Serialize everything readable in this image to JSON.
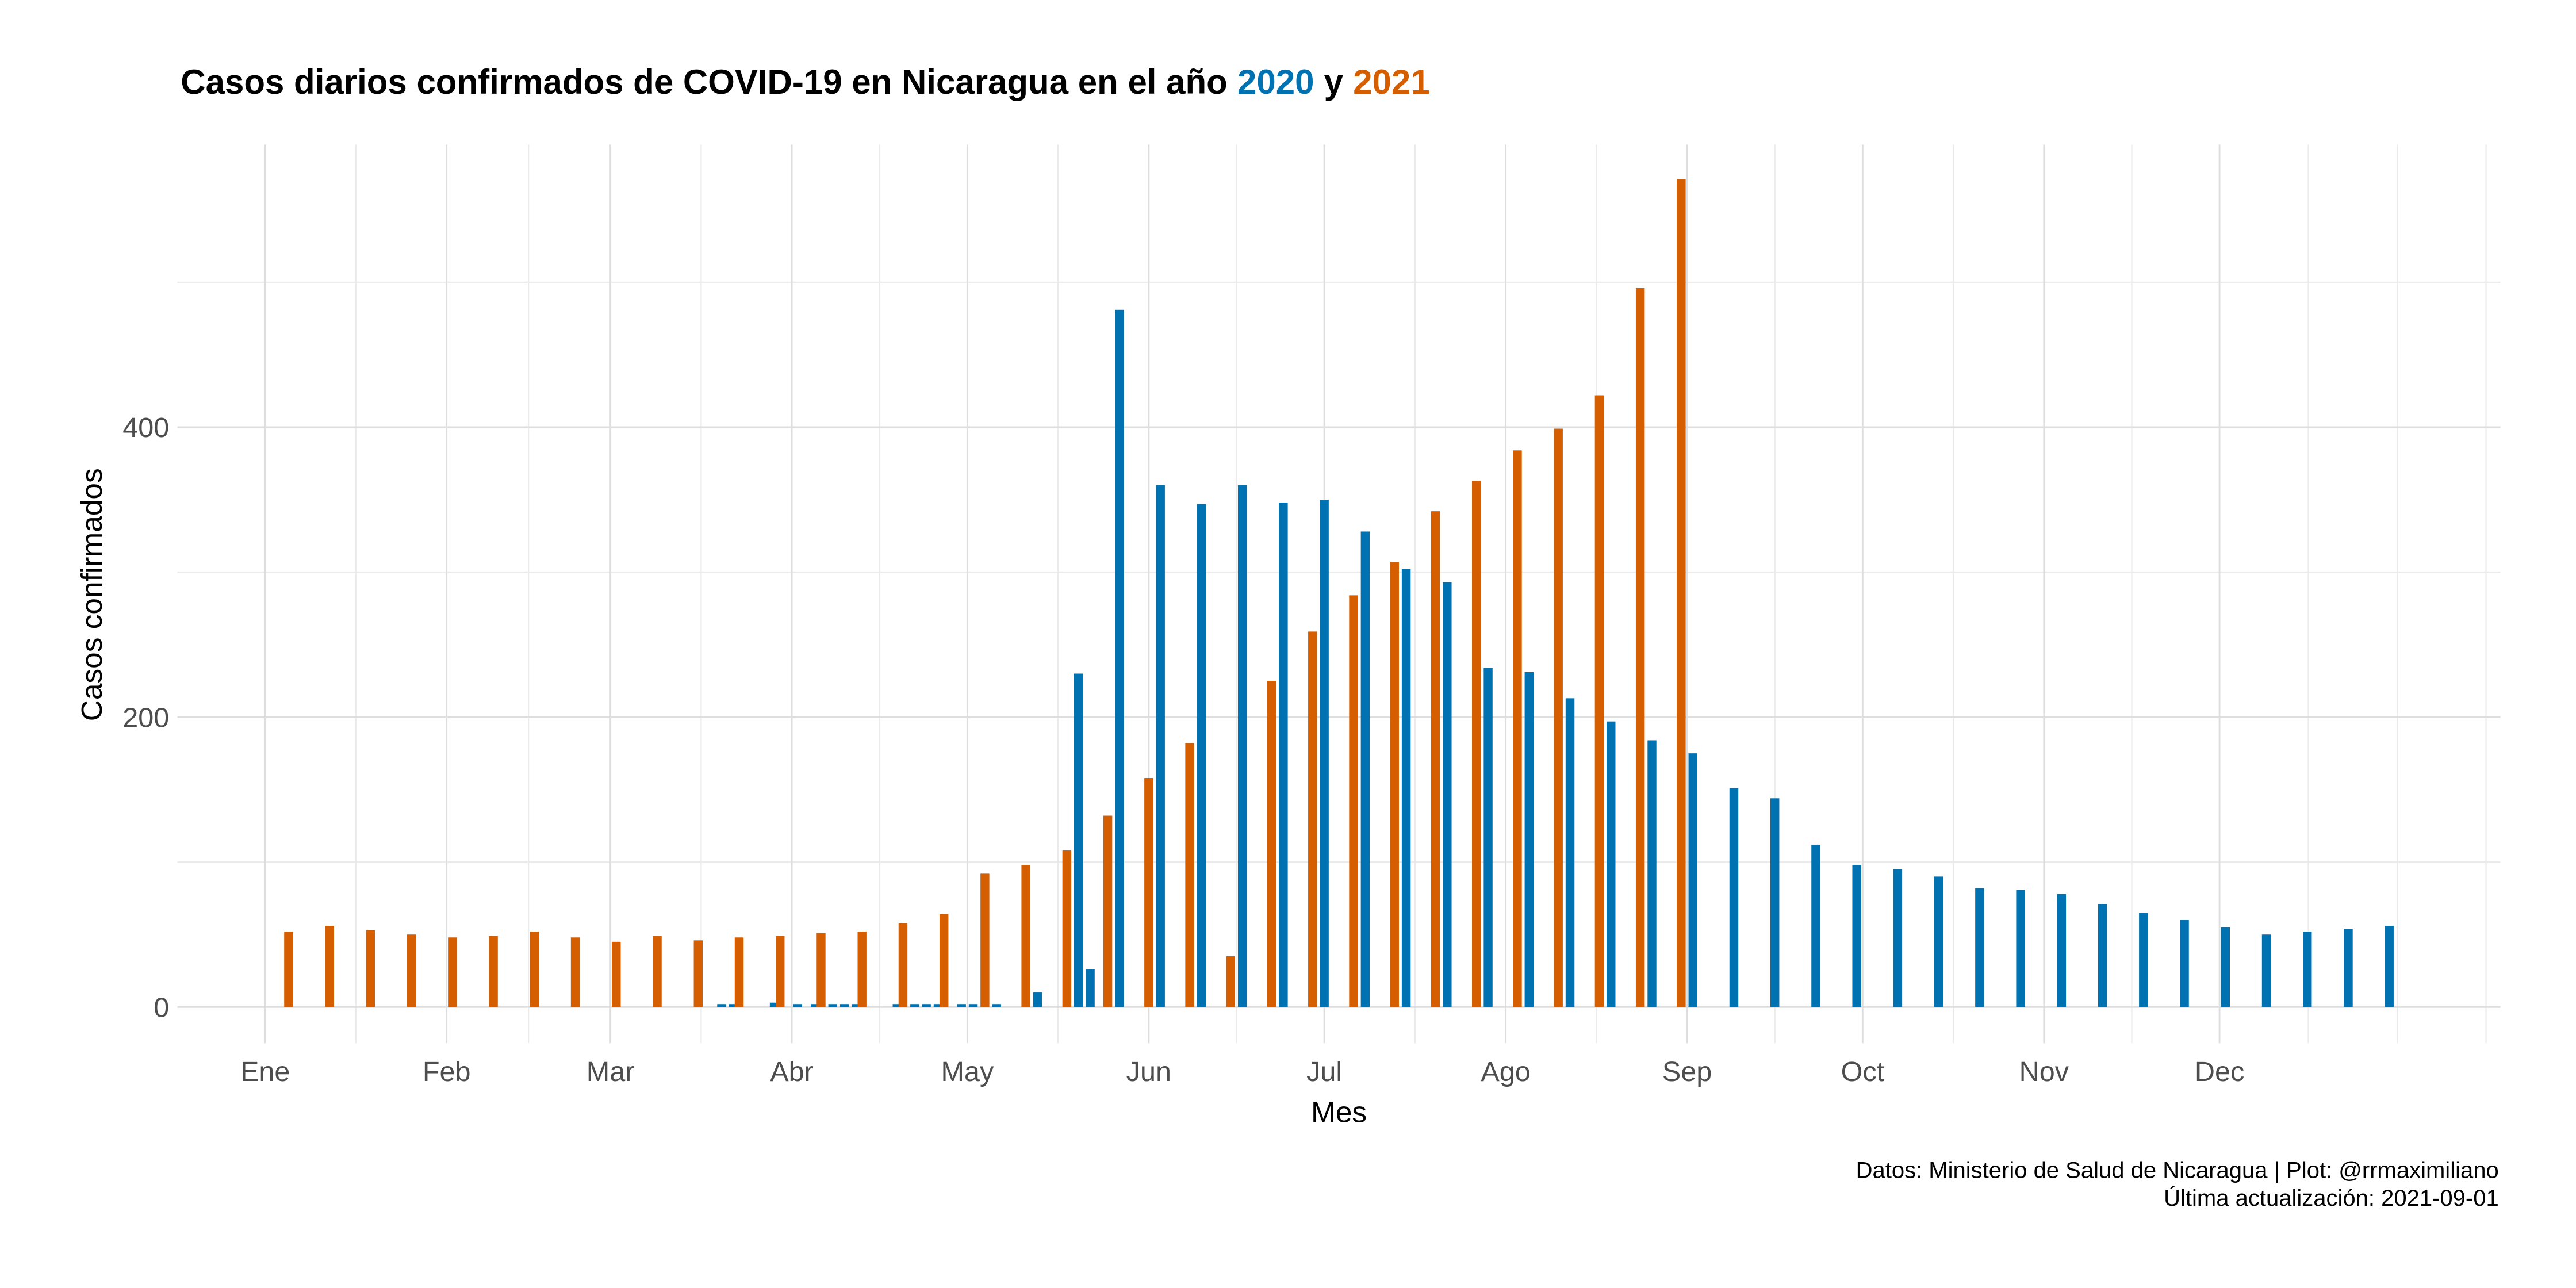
{
  "chart_data": {
    "type": "bar",
    "title": [
      "Casos diarios confirmados de COVID-19 en Nicaragua en el año",
      "y"
    ],
    "x_label": "Mes",
    "y_label": "Casos confirmados",
    "caption": [
      "Datos: Ministerio de Salud de Nicaragua | Plot: @rrmaximiliano",
      "Última actualización: 2021-09-01"
    ],
    "xlim": [
      -15,
      382
    ],
    "xticks": [
      {
        "value": 0,
        "label": "Ene"
      },
      {
        "value": 31,
        "label": "Feb"
      },
      {
        "value": 59,
        "label": "Mar"
      },
      {
        "value": 90,
        "label": "Abr"
      },
      {
        "value": 120,
        "label": "May"
      },
      {
        "value": 151,
        "label": "Jun"
      },
      {
        "value": 181,
        "label": "Jul"
      },
      {
        "value": 212,
        "label": "Ago"
      },
      {
        "value": 243,
        "label": "Sep"
      },
      {
        "value": 273,
        "label": "Oct"
      },
      {
        "value": 304,
        "label": "Nov"
      },
      {
        "value": 334,
        "label": "Dec"
      }
    ],
    "ylim": [
      -25,
      595
    ],
    "yticks": [
      0,
      200,
      400
    ],
    "grid": true,
    "series": [
      {
        "name": "2020",
        "color": "#0072B2",
        "x": [
          78,
          80,
          87,
          91,
          94,
          97,
          99,
          101,
          108,
          111,
          113,
          115,
          119,
          121,
          125,
          132,
          139,
          141,
          146,
          153,
          160,
          167,
          174,
          181,
          188,
          195,
          202,
          209,
          216,
          223,
          230,
          237,
          244,
          251,
          258,
          265,
          272,
          279,
          286,
          293,
          300,
          307,
          314,
          321,
          328,
          335,
          342,
          349,
          356,
          363
        ],
        "values": [
          2,
          2,
          3,
          2,
          2,
          2,
          2,
          2,
          2,
          2,
          2,
          2,
          2,
          2,
          2,
          10,
          230,
          26,
          481,
          360,
          347,
          360,
          348,
          350,
          328,
          302,
          293,
          234,
          231,
          213,
          197,
          184,
          175,
          151,
          144,
          112,
          98,
          95,
          90,
          82,
          81,
          78,
          71,
          65,
          60,
          55,
          50,
          52,
          54,
          56
        ]
      },
      {
        "name": "2021",
        "color": "#D55E00",
        "x": [
          4,
          11,
          18,
          25,
          32,
          39,
          46,
          53,
          60,
          67,
          74,
          81,
          88,
          95,
          102,
          109,
          116,
          123,
          130,
          137,
          144,
          151,
          158,
          165,
          172,
          179,
          186,
          193,
          200,
          207,
          214,
          221,
          228,
          235,
          242
        ],
        "values": [
          52,
          56,
          53,
          50,
          48,
          49,
          52,
          48,
          45,
          49,
          46,
          48,
          49,
          51,
          52,
          58,
          64,
          92,
          98,
          108,
          132,
          158,
          182,
          35,
          225,
          259,
          284,
          307,
          342,
          363,
          384,
          399,
          422,
          496,
          571
        ]
      }
    ]
  }
}
